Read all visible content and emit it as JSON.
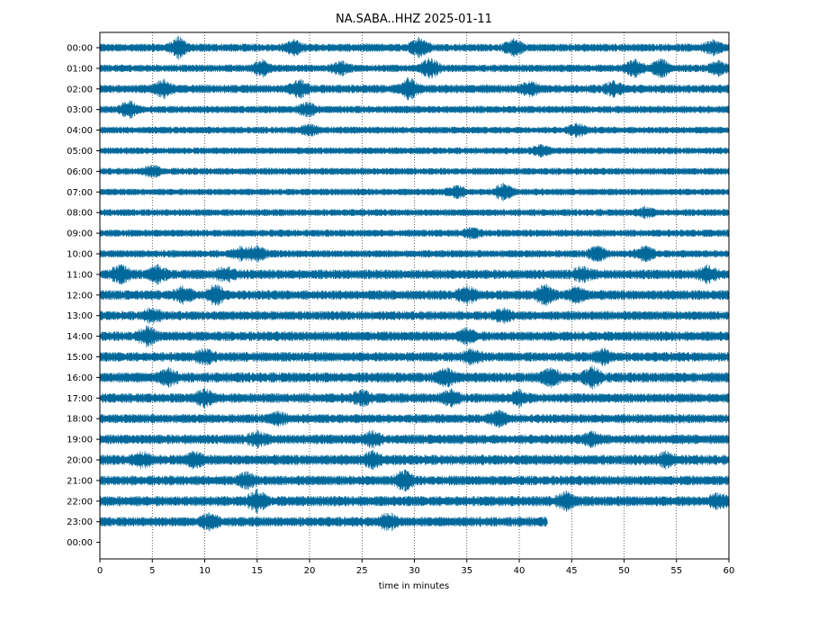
{
  "chart_data": {
    "type": "line",
    "title": "NA.SABA..HHZ 2025-01-11",
    "xlabel": "time in minutes",
    "ylabel": "",
    "xlim": [
      0,
      60
    ],
    "x_ticks": [
      "0",
      "5",
      "10",
      "15",
      "20",
      "25",
      "30",
      "35",
      "40",
      "45",
      "50",
      "55",
      "60"
    ],
    "y_ticks": [
      "00:00",
      "01:00",
      "02:00",
      "03:00",
      "04:00",
      "05:00",
      "06:00",
      "07:00",
      "08:00",
      "09:00",
      "10:00",
      "11:00",
      "12:00",
      "13:00",
      "14:00",
      "15:00",
      "16:00",
      "17:00",
      "18:00",
      "19:00",
      "20:00",
      "21:00",
      "22:00",
      "23:00",
      "00:00"
    ],
    "grid": "vertical dotted lines at each 5 minutes",
    "trace_color": "#00689a",
    "last_trace_end_minute": 42.7,
    "rows": [
      {
        "hour": "00:00",
        "noise": 0.4,
        "events": [
          [
            7.5,
            1.0
          ],
          [
            18.5,
            0.6
          ],
          [
            30.5,
            1.0
          ],
          [
            39.5,
            0.7
          ],
          [
            58.5,
            0.6
          ]
        ]
      },
      {
        "hour": "01:00",
        "noise": 0.35,
        "events": [
          [
            15.5,
            0.8
          ],
          [
            23.0,
            0.6
          ],
          [
            31.5,
            1.0
          ],
          [
            51.0,
            0.8
          ],
          [
            53.5,
            0.9
          ],
          [
            59.0,
            0.6
          ]
        ]
      },
      {
        "hour": "02:00",
        "noise": 0.45,
        "events": [
          [
            6.0,
            0.8
          ],
          [
            19.0,
            0.8
          ],
          [
            29.5,
            1.0
          ],
          [
            41.0,
            0.6
          ],
          [
            49.0,
            0.6
          ]
        ]
      },
      {
        "hour": "03:00",
        "noise": 0.35,
        "events": [
          [
            2.8,
            0.8
          ],
          [
            19.8,
            0.6
          ]
        ]
      },
      {
        "hour": "04:00",
        "noise": 0.3,
        "events": [
          [
            20.0,
            0.5
          ],
          [
            45.5,
            0.6
          ]
        ]
      },
      {
        "hour": "05:00",
        "noise": 0.28,
        "events": [
          [
            42.0,
            0.5
          ]
        ]
      },
      {
        "hour": "06:00",
        "noise": 0.3,
        "events": [
          [
            5.0,
            0.5
          ]
        ]
      },
      {
        "hour": "07:00",
        "noise": 0.28,
        "events": [
          [
            34.0,
            0.6
          ],
          [
            38.5,
            0.8
          ]
        ]
      },
      {
        "hour": "08:00",
        "noise": 0.3,
        "events": [
          [
            52.0,
            0.4
          ]
        ]
      },
      {
        "hour": "09:00",
        "noise": 0.32,
        "events": [
          [
            35.5,
            0.4
          ]
        ]
      },
      {
        "hour": "10:00",
        "noise": 0.35,
        "events": [
          [
            13.5,
            0.6
          ],
          [
            15.0,
            0.7
          ],
          [
            47.5,
            0.8
          ],
          [
            52.0,
            0.7
          ]
        ]
      },
      {
        "hour": "11:00",
        "noise": 0.55,
        "events": [
          [
            2.0,
            0.8
          ],
          [
            5.5,
            0.8
          ],
          [
            12.0,
            0.6
          ],
          [
            46.0,
            0.6
          ],
          [
            58.0,
            0.7
          ]
        ]
      },
      {
        "hour": "12:00",
        "noise": 0.55,
        "events": [
          [
            8.0,
            0.7
          ],
          [
            11.0,
            1.0
          ],
          [
            35.0,
            0.8
          ],
          [
            42.5,
            0.9
          ],
          [
            45.5,
            0.7
          ]
        ]
      },
      {
        "hour": "13:00",
        "noise": 0.5,
        "events": [
          [
            5.0,
            0.6
          ],
          [
            38.5,
            0.5
          ]
        ]
      },
      {
        "hour": "14:00",
        "noise": 0.55,
        "events": [
          [
            4.5,
            0.8
          ],
          [
            35.0,
            0.6
          ]
        ]
      },
      {
        "hour": "15:00",
        "noise": 0.55,
        "events": [
          [
            10.0,
            0.6
          ],
          [
            35.5,
            0.6
          ],
          [
            48.0,
            0.6
          ]
        ]
      },
      {
        "hour": "16:00",
        "noise": 0.6,
        "events": [
          [
            6.5,
            0.7
          ],
          [
            33.0,
            0.8
          ],
          [
            43.0,
            0.8
          ],
          [
            47.0,
            0.9
          ]
        ]
      },
      {
        "hour": "17:00",
        "noise": 0.55,
        "events": [
          [
            10.0,
            0.7
          ],
          [
            25.0,
            0.6
          ],
          [
            33.5,
            0.7
          ],
          [
            40.0,
            0.6
          ]
        ]
      },
      {
        "hour": "18:00",
        "noise": 0.5,
        "events": [
          [
            17.0,
            0.6
          ],
          [
            38.0,
            0.6
          ]
        ]
      },
      {
        "hour": "19:00",
        "noise": 0.55,
        "events": [
          [
            15.0,
            0.6
          ],
          [
            26.0,
            0.6
          ],
          [
            47.0,
            0.6
          ]
        ]
      },
      {
        "hour": "20:00",
        "noise": 0.6,
        "events": [
          [
            4.0,
            0.6
          ],
          [
            9.0,
            0.6
          ],
          [
            26.0,
            0.6
          ],
          [
            54.0,
            0.6
          ]
        ]
      },
      {
        "hour": "21:00",
        "noise": 0.55,
        "events": [
          [
            14.0,
            0.6
          ],
          [
            29.0,
            1.0
          ]
        ]
      },
      {
        "hour": "22:00",
        "noise": 0.6,
        "events": [
          [
            15.0,
            1.0
          ],
          [
            44.5,
            0.7
          ],
          [
            59.0,
            0.6
          ]
        ]
      },
      {
        "hour": "23:00",
        "noise": 0.55,
        "events": [
          [
            10.5,
            0.7
          ],
          [
            27.5,
            0.7
          ]
        ]
      }
    ]
  }
}
